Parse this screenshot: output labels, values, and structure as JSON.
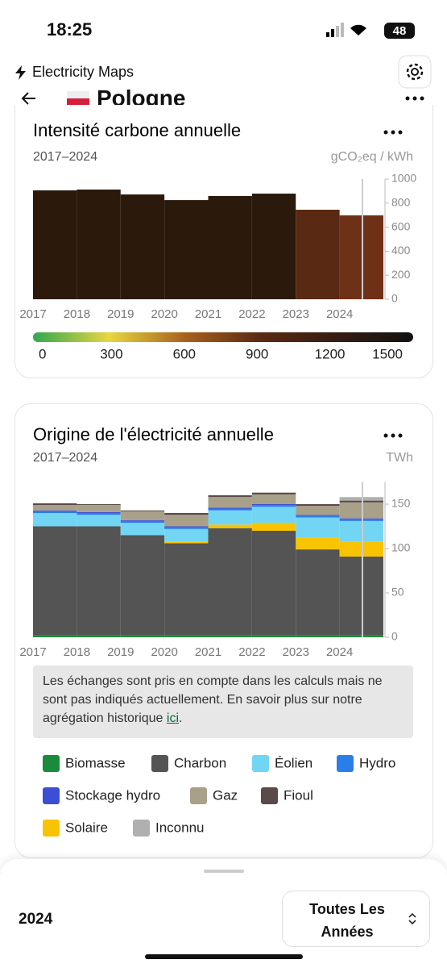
{
  "status_bar": {
    "time": "18:25",
    "battery": "48"
  },
  "header": {
    "app": "Electricity Maps",
    "country": "Pologne"
  },
  "carbon_card": {
    "chart_data": {
      "type": "bar",
      "title": "Intensité carbone annuelle",
      "subtitle": "2017–2024",
      "y_label": "gCO₂eq / kWh",
      "categories": [
        "2017",
        "2018",
        "2019",
        "2020",
        "2021",
        "2022",
        "2023",
        "2024"
      ],
      "values": [
        906,
        913,
        872,
        825,
        859,
        879,
        745,
        698
      ],
      "colors": [
        "#2b1a0c",
        "#2b1a0c",
        "#2b1a0c",
        "#2b1a0c",
        "#2b1a0c",
        "#2b1a0c",
        "#5a2913",
        "#6e3017"
      ],
      "ylim": [
        0,
        1000
      ],
      "yticks": [
        0,
        200,
        400,
        600,
        800,
        1000
      ],
      "colorbar": {
        "ticks": [
          0,
          300,
          600,
          900,
          1200,
          1500
        ]
      }
    }
  },
  "mix_card": {
    "chart_data": {
      "type": "stacked_bar",
      "title": "Origine de l'électricité annuelle",
      "subtitle": "2017–2024",
      "y_label": "TWh",
      "categories": [
        "2017",
        "2018",
        "2019",
        "2020",
        "2021",
        "2022",
        "2023",
        "2024"
      ],
      "series": [
        {
          "name": "Biomasse",
          "color": "#1b8a3c",
          "values": [
            2,
            2,
            2,
            2,
            2,
            2,
            2,
            2
          ]
        },
        {
          "name": "Charbon",
          "color": "#545454",
          "values": [
            123,
            123,
            113,
            104,
            121,
            118,
            97,
            89
          ]
        },
        {
          "name": "Solaire",
          "color": "#f8c300",
          "values": [
            0,
            0,
            0,
            2,
            4,
            9,
            13,
            17
          ]
        },
        {
          "name": "Éolien",
          "color": "#72d5f4",
          "values": [
            15,
            13,
            14,
            14,
            16,
            18,
            23,
            23
          ]
        },
        {
          "name": "Hydro",
          "color": "#2b7de9",
          "values": [
            2,
            2,
            2,
            2,
            2,
            2,
            2,
            2
          ]
        },
        {
          "name": "Stockage hydro",
          "color": "#3a4fd6",
          "values": [
            1,
            1,
            1,
            1,
            1,
            1,
            1,
            1
          ]
        },
        {
          "name": "Gaz",
          "color": "#a9a08a",
          "values": [
            6,
            8,
            10,
            13,
            12,
            11,
            10,
            18
          ]
        },
        {
          "name": "Fioul",
          "color": "#5b4a4a",
          "values": [
            2,
            1,
            1,
            2,
            2,
            2,
            2,
            2
          ]
        },
        {
          "name": "Inconnu",
          "color": "#b0b0b0",
          "values": [
            0,
            0,
            0,
            0,
            0,
            0,
            0,
            4
          ]
        }
      ],
      "ylim": [
        0,
        175
      ],
      "yticks": [
        0,
        50,
        100,
        150
      ]
    },
    "note": {
      "text": "Les échanges sont pris en compte dans les calculs mais ne sont pas indiqués actuellement. En savoir plus sur notre agrégation historique ",
      "link": "ici",
      "end": "."
    }
  },
  "footer": {
    "year": "2024",
    "selector": "Toutes Les Années"
  }
}
